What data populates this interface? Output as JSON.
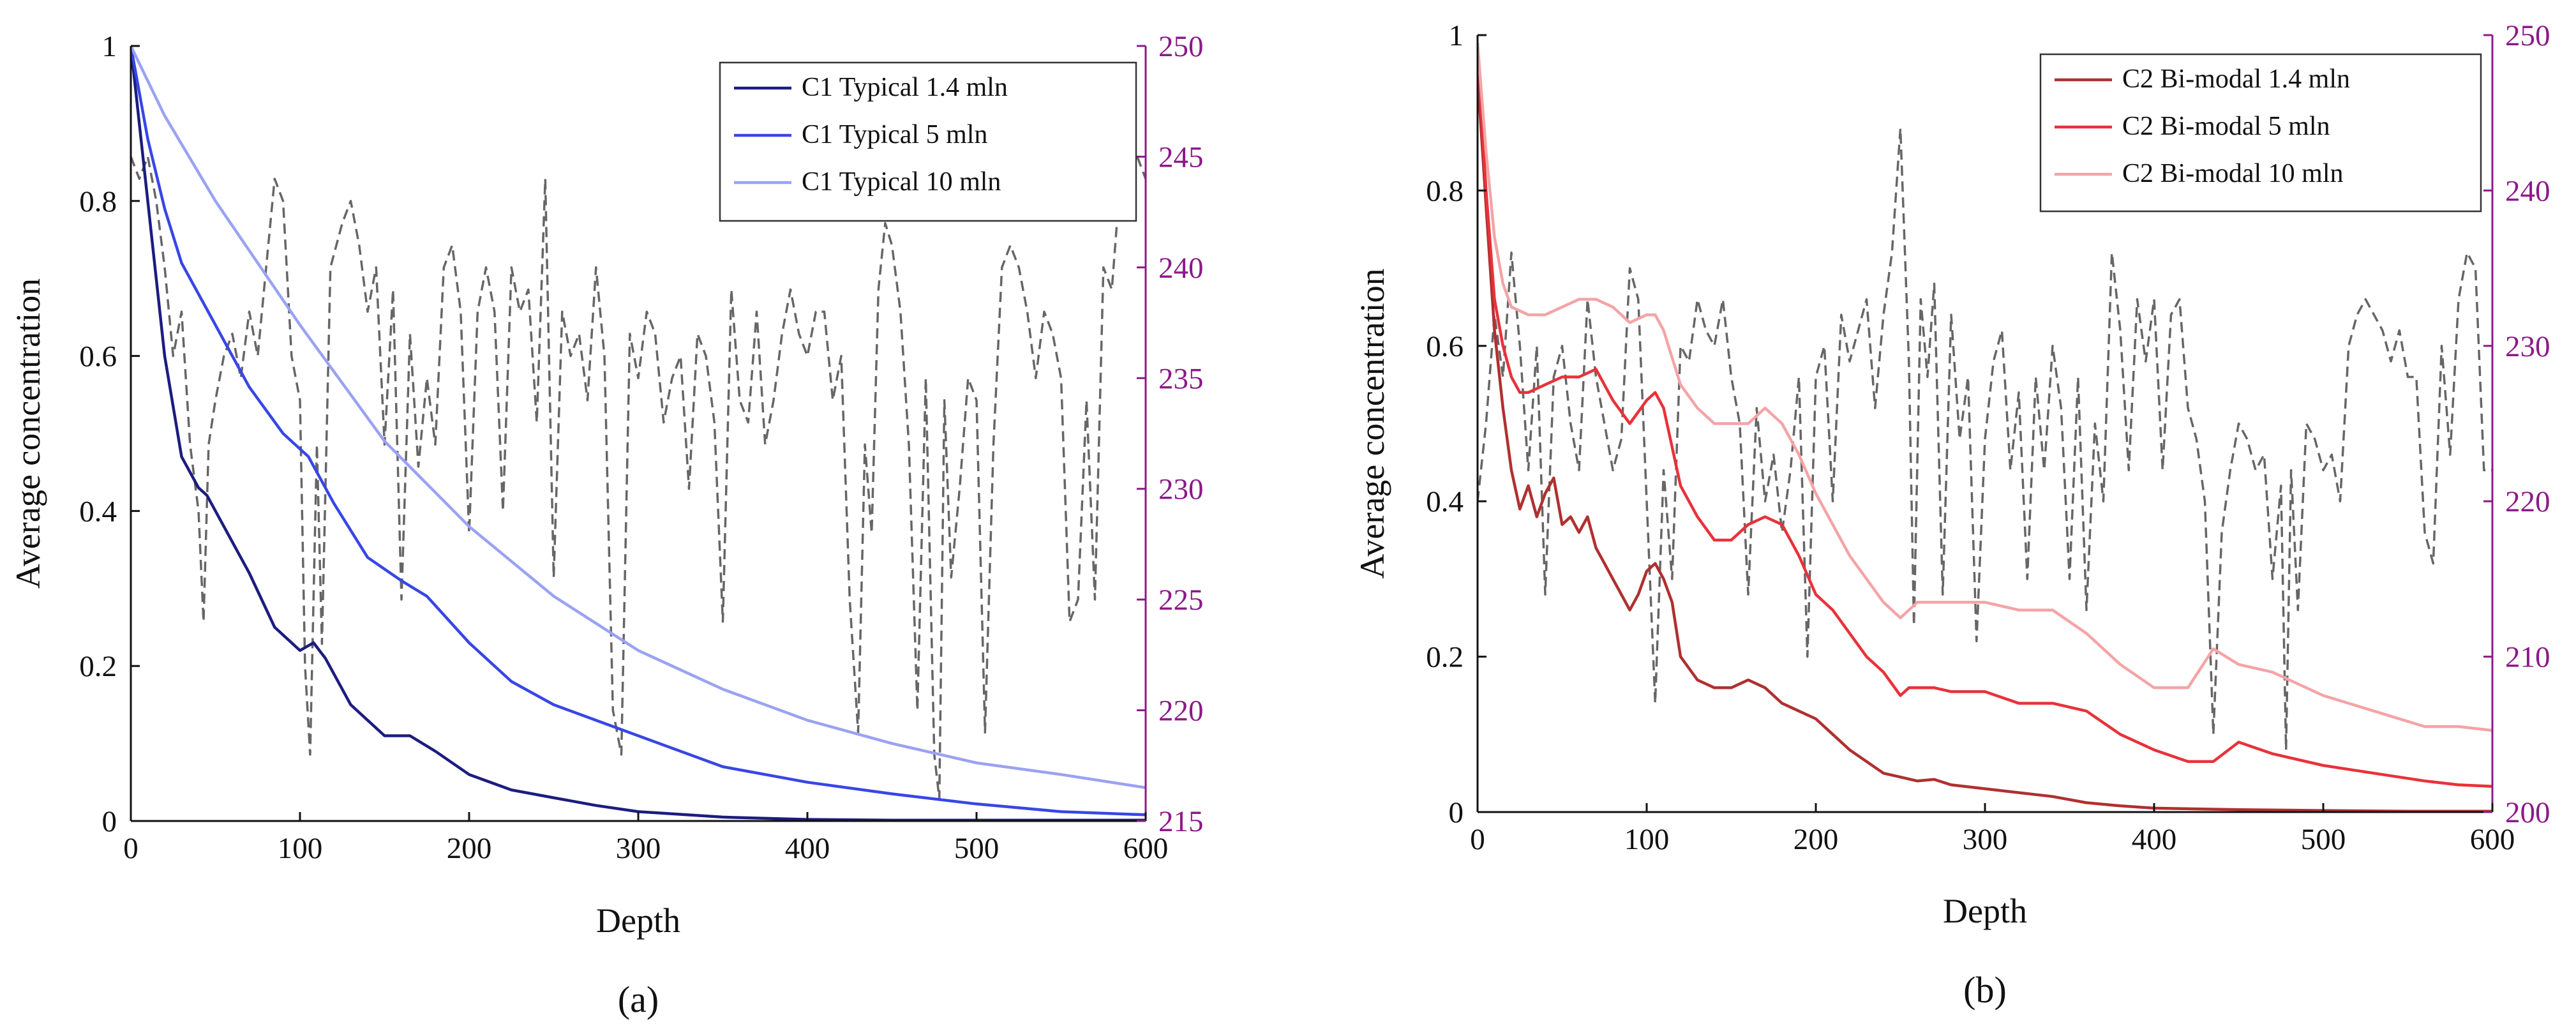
{
  "chart_data": [
    {
      "type": "line",
      "panel_label": "(a)",
      "xlabel": "Depth",
      "ylabel": "Average concentration",
      "xlim": [
        0,
        600
      ],
      "ylim": [
        0,
        1
      ],
      "y2lim": [
        215,
        250
      ],
      "xticks": [
        0,
        100,
        200,
        300,
        400,
        500,
        600
      ],
      "yticks": [
        0,
        0.2,
        0.4,
        0.6,
        0.8,
        1
      ],
      "ytick_labels": [
        "0",
        "0.2",
        "0.4",
        "0.6",
        "0.8",
        "1"
      ],
      "y2ticks": [
        215,
        220,
        225,
        230,
        235,
        240,
        245,
        250
      ],
      "right_axis_color": "#8B1A89",
      "grid": false,
      "legend_position": "top-right",
      "series": [
        {
          "name": "C1 Typical 1.4 mln",
          "color": "#1c1c80",
          "x": [
            0,
            10,
            20,
            30,
            40,
            45,
            55,
            70,
            85,
            100,
            108,
            115,
            130,
            150,
            165,
            180,
            200,
            225,
            250,
            275,
            300,
            350,
            400,
            450,
            500,
            550,
            600
          ],
          "y": [
            1.0,
            0.8,
            0.6,
            0.47,
            0.43,
            0.42,
            0.38,
            0.32,
            0.25,
            0.22,
            0.23,
            0.21,
            0.15,
            0.11,
            0.11,
            0.09,
            0.06,
            0.04,
            0.03,
            0.02,
            0.012,
            0.005,
            0.002,
            0.001,
            0.001,
            0.001,
            0.001
          ]
        },
        {
          "name": "C1 Typical 5 mln",
          "color": "#3846e6",
          "x": [
            0,
            10,
            20,
            30,
            50,
            70,
            90,
            105,
            120,
            140,
            160,
            175,
            200,
            225,
            250,
            275,
            300,
            350,
            400,
            450,
            500,
            550,
            600
          ],
          "y": [
            1.0,
            0.88,
            0.79,
            0.72,
            0.64,
            0.56,
            0.5,
            0.47,
            0.41,
            0.34,
            0.31,
            0.29,
            0.23,
            0.18,
            0.15,
            0.13,
            0.11,
            0.07,
            0.05,
            0.035,
            0.022,
            0.012,
            0.008
          ]
        },
        {
          "name": "C1 Typical 10 mln",
          "color": "#9aa2f2",
          "x": [
            0,
            20,
            50,
            100,
            150,
            200,
            250,
            300,
            350,
            400,
            450,
            500,
            550,
            600
          ],
          "y": [
            1.0,
            0.91,
            0.8,
            0.64,
            0.49,
            0.38,
            0.29,
            0.22,
            0.17,
            0.13,
            0.1,
            0.075,
            0.06,
            0.043
          ]
        },
        {
          "name": "",
          "axis": "right",
          "style": "dashed",
          "color": "#666666",
          "x": [
            0,
            5,
            10,
            15,
            20,
            25,
            30,
            35,
            40,
            43,
            46,
            50,
            55,
            60,
            65,
            70,
            75,
            80,
            85,
            90,
            95,
            100,
            103,
            106,
            110,
            113,
            118,
            125,
            130,
            135,
            140,
            145,
            150,
            155,
            160,
            165,
            170,
            175,
            180,
            185,
            190,
            195,
            200,
            205,
            210,
            215,
            220,
            225,
            230,
            235,
            240,
            245,
            250,
            255,
            260,
            265,
            270,
            275,
            280,
            285,
            290,
            295,
            300,
            305,
            310,
            315,
            320,
            325,
            330,
            335,
            340,
            345,
            350,
            355,
            360,
            365,
            370,
            375,
            380,
            385,
            390,
            395,
            400,
            405,
            410,
            415,
            420,
            425,
            430,
            434,
            438,
            442,
            446,
            450,
            455,
            460,
            465,
            470,
            475,
            478,
            481,
            485,
            490,
            495,
            500,
            505,
            510,
            515,
            520,
            525,
            530,
            535,
            540,
            545,
            550,
            555,
            560,
            565,
            570,
            575,
            580,
            585,
            590,
            595,
            600
          ],
          "y": [
            245,
            244,
            245,
            243,
            240,
            236,
            238,
            232,
            229,
            224,
            232,
            234,
            236,
            237,
            235,
            238,
            236,
            240,
            244,
            243,
            236,
            234,
            222,
            218,
            232,
            223,
            240,
            242,
            243,
            241,
            238,
            240,
            232,
            239,
            225,
            237,
            231,
            235,
            232,
            240,
            241,
            238,
            228,
            238,
            240,
            238,
            229,
            240,
            238,
            239,
            233,
            244,
            226,
            238,
            236,
            237,
            234,
            240,
            236,
            220,
            218,
            237,
            235,
            238,
            237,
            233,
            235,
            236,
            230,
            237,
            236,
            233,
            224,
            239,
            234,
            233,
            238,
            232,
            234,
            237,
            239,
            237,
            236,
            238,
            238,
            234,
            236,
            225,
            219,
            232,
            228,
            239,
            242,
            241,
            238,
            232,
            220,
            235,
            218,
            216,
            234,
            226,
            230,
            235,
            234,
            219,
            232,
            240,
            241,
            240,
            238,
            235,
            238,
            237,
            235,
            224,
            225,
            234,
            225,
            240,
            239,
            244,
            246,
            245,
            244
          ]
        }
      ]
    },
    {
      "type": "line",
      "panel_label": "(b)",
      "xlabel": "Depth",
      "ylabel": "Average concentration",
      "xlim": [
        0,
        600
      ],
      "ylim": [
        0,
        1
      ],
      "y2lim": [
        200,
        250
      ],
      "xticks": [
        0,
        100,
        200,
        300,
        400,
        500,
        600
      ],
      "yticks": [
        0,
        0.2,
        0.4,
        0.6,
        0.8,
        1
      ],
      "ytick_labels": [
        "0",
        "0.2",
        "0.4",
        "0.6",
        "0.8",
        "1"
      ],
      "y2ticks": [
        200,
        210,
        220,
        230,
        240,
        250
      ],
      "right_axis_color": "#8B1A89",
      "grid": false,
      "legend_position": "top-right",
      "series": [
        {
          "name": "C2 Bi-modal 1.4 mln",
          "color": "#b03030",
          "x": [
            0,
            5,
            10,
            15,
            20,
            25,
            30,
            35,
            40,
            45,
            50,
            55,
            60,
            65,
            70,
            75,
            80,
            85,
            90,
            95,
            100,
            105,
            110,
            115,
            120,
            130,
            140,
            150,
            160,
            170,
            180,
            190,
            200,
            210,
            220,
            230,
            240,
            250,
            260,
            270,
            280,
            300,
            320,
            340,
            360,
            380,
            400,
            450,
            500,
            550,
            600
          ],
          "y": [
            0.95,
            0.78,
            0.62,
            0.52,
            0.44,
            0.39,
            0.42,
            0.38,
            0.41,
            0.43,
            0.37,
            0.38,
            0.36,
            0.38,
            0.34,
            0.32,
            0.3,
            0.28,
            0.26,
            0.28,
            0.31,
            0.32,
            0.3,
            0.27,
            0.2,
            0.17,
            0.16,
            0.16,
            0.17,
            0.16,
            0.14,
            0.13,
            0.12,
            0.1,
            0.08,
            0.065,
            0.05,
            0.045,
            0.04,
            0.042,
            0.035,
            0.03,
            0.025,
            0.02,
            0.012,
            0.008,
            0.005,
            0.003,
            0.002,
            0.001,
            0.001
          ]
        },
        {
          "name": "C2 Bi-modal 5 mln",
          "color": "#e8323a",
          "x": [
            0,
            5,
            10,
            15,
            20,
            25,
            30,
            40,
            50,
            60,
            70,
            80,
            90,
            100,
            105,
            110,
            120,
            130,
            140,
            150,
            160,
            170,
            180,
            190,
            200,
            210,
            220,
            230,
            240,
            250,
            255,
            260,
            270,
            280,
            300,
            320,
            340,
            360,
            380,
            400,
            420,
            435,
            450,
            470,
            500,
            530,
            560,
            580,
            600
          ],
          "y": [
            0.98,
            0.8,
            0.66,
            0.6,
            0.56,
            0.54,
            0.54,
            0.55,
            0.56,
            0.56,
            0.57,
            0.53,
            0.5,
            0.53,
            0.54,
            0.52,
            0.42,
            0.38,
            0.35,
            0.35,
            0.37,
            0.38,
            0.37,
            0.33,
            0.28,
            0.26,
            0.23,
            0.2,
            0.18,
            0.15,
            0.16,
            0.16,
            0.16,
            0.155,
            0.155,
            0.14,
            0.14,
            0.13,
            0.1,
            0.08,
            0.065,
            0.065,
            0.09,
            0.075,
            0.06,
            0.05,
            0.04,
            0.035,
            0.033
          ]
        },
        {
          "name": "C2 Bi-modal 10 mln",
          "color": "#f4a4a6",
          "x": [
            0,
            5,
            10,
            15,
            20,
            30,
            40,
            50,
            60,
            70,
            80,
            90,
            100,
            105,
            110,
            120,
            130,
            140,
            150,
            160,
            170,
            180,
            190,
            200,
            210,
            220,
            230,
            240,
            250,
            255,
            260,
            270,
            280,
            300,
            320,
            340,
            360,
            380,
            400,
            420,
            435,
            450,
            470,
            500,
            530,
            560,
            580,
            600
          ],
          "y": [
            0.99,
            0.85,
            0.74,
            0.68,
            0.65,
            0.64,
            0.64,
            0.65,
            0.66,
            0.66,
            0.65,
            0.63,
            0.64,
            0.64,
            0.62,
            0.55,
            0.52,
            0.5,
            0.5,
            0.5,
            0.52,
            0.5,
            0.46,
            0.41,
            0.37,
            0.33,
            0.3,
            0.27,
            0.25,
            0.26,
            0.27,
            0.27,
            0.27,
            0.27,
            0.26,
            0.26,
            0.23,
            0.19,
            0.16,
            0.16,
            0.21,
            0.19,
            0.18,
            0.15,
            0.13,
            0.11,
            0.11,
            0.105
          ]
        },
        {
          "name": "",
          "axis": "right",
          "style": "dashed",
          "color": "#666666",
          "x": [
            0,
            5,
            10,
            15,
            20,
            25,
            30,
            35,
            40,
            45,
            50,
            55,
            60,
            65,
            70,
            75,
            80,
            85,
            90,
            95,
            100,
            105,
            110,
            115,
            120,
            125,
            130,
            135,
            140,
            145,
            150,
            155,
            160,
            165,
            170,
            175,
            180,
            185,
            190,
            195,
            200,
            205,
            210,
            215,
            220,
            225,
            230,
            235,
            240,
            245,
            250,
            255,
            258,
            262,
            266,
            270,
            275,
            280,
            285,
            290,
            295,
            300,
            305,
            310,
            315,
            320,
            325,
            330,
            335,
            340,
            345,
            350,
            355,
            360,
            365,
            370,
            375,
            380,
            385,
            390,
            395,
            400,
            405,
            410,
            415,
            420,
            425,
            430,
            435,
            440,
            445,
            450,
            455,
            460,
            465,
            470,
            475,
            478,
            481,
            485,
            490,
            495,
            500,
            505,
            510,
            515,
            520,
            525,
            530,
            535,
            540,
            545,
            550,
            555,
            560,
            565,
            570,
            575,
            580,
            585,
            590,
            595,
            600
          ],
          "y": [
            220,
            225,
            232,
            228,
            236,
            230,
            222,
            230,
            214,
            228,
            230,
            225,
            222,
            233,
            228,
            225,
            222,
            224,
            235,
            233,
            220,
            207,
            222,
            215,
            230,
            229,
            233,
            231,
            230,
            233,
            228,
            225,
            214,
            226,
            220,
            223,
            218,
            222,
            228,
            210,
            228,
            230,
            220,
            232,
            229,
            231,
            233,
            226,
            232,
            236,
            244,
            229,
            212,
            233,
            228,
            234,
            214,
            232,
            224,
            228,
            211,
            224,
            229,
            231,
            222,
            227,
            215,
            228,
            222,
            230,
            226,
            215,
            228,
            213,
            225,
            220,
            236,
            231,
            222,
            233,
            229,
            233,
            222,
            232,
            233,
            226,
            224,
            220,
            205,
            218,
            222,
            225,
            224,
            222,
            223,
            215,
            221,
            204,
            222,
            213,
            225,
            224,
            222,
            223,
            220,
            230,
            232,
            233,
            232,
            231,
            229,
            231,
            228,
            228,
            218,
            216,
            230,
            223,
            233,
            236,
            235,
            222,
            222
          ]
        }
      ]
    }
  ]
}
